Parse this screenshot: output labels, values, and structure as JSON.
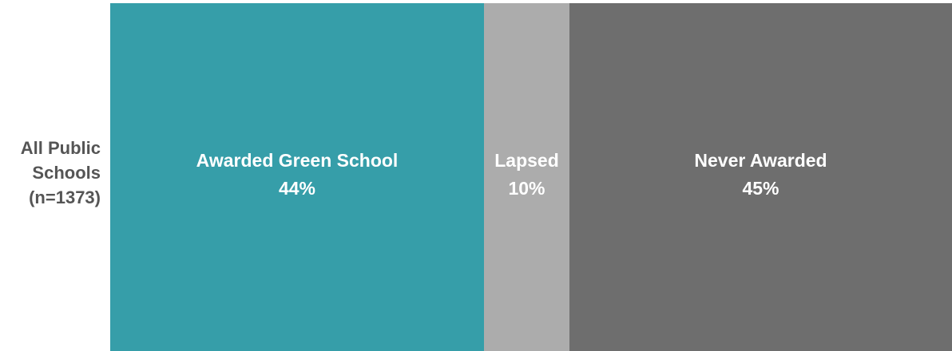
{
  "chart_data": {
    "type": "bar",
    "orientation": "horizontal",
    "stacked": true,
    "categories": [
      "All Public Schools (n=1373)"
    ],
    "category_label_lines": [
      "All Public",
      "Schools",
      "(n=1373)"
    ],
    "xlim": [
      0,
      100
    ],
    "series": [
      {
        "name": "Awarded Green School",
        "values": [
          44
        ],
        "label": "44%",
        "color": "#369ea9"
      },
      {
        "name": "Lapsed",
        "values": [
          10
        ],
        "label": "10%",
        "color": "#acacac"
      },
      {
        "name": "Never Awarded",
        "values": [
          45
        ],
        "label": "45%",
        "color": "#6e6e6e"
      }
    ]
  }
}
